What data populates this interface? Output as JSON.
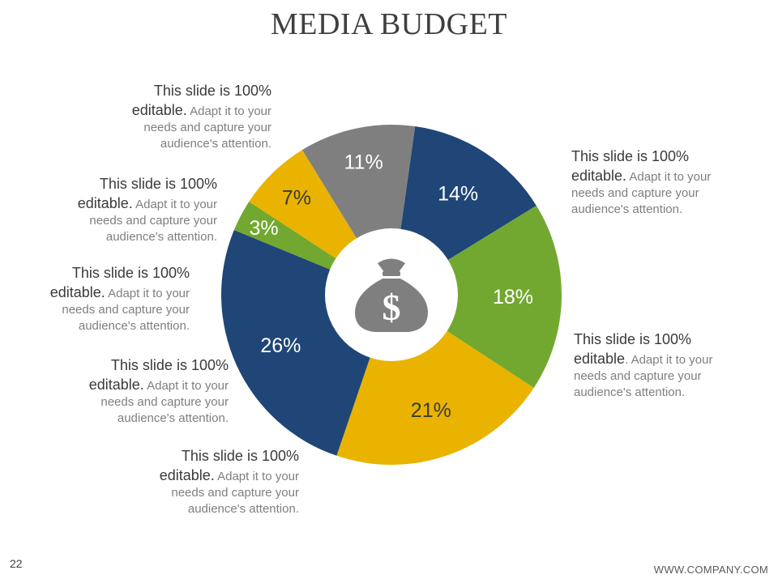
{
  "title": "MEDIA BUDGET",
  "page_number": "22",
  "footer_url": "WWW.COMPANY.COM",
  "notes": [
    {
      "head": "This slide is 100% editable.",
      "rest": " Adapt it to your needs and capture your audience's attention."
    },
    {
      "head": "This slide is 100% editable.",
      "rest": " Adapt it to your needs and capture your audience's attention."
    },
    {
      "head": "This slide is 100% editable.",
      "rest": " Adapt it to your needs and capture your audience's attention."
    },
    {
      "head": "This slide is 100% editable.",
      "rest": " Adapt it to your needs and capture your audience's attention."
    },
    {
      "head": "This slide is 100% editable.",
      "rest": " Adapt it to your needs and capture your audience's attention."
    },
    {
      "head": "This slide is 100% editable",
      "rest": ". Adapt it to your needs and capture your audience's attention."
    },
    {
      "head": "This slide is 100% editable.",
      "rest": " Adapt it to your needs and capture your audience's attention."
    }
  ],
  "center_icon": "money-bag-dollar-icon",
  "chart_data": {
    "type": "pie",
    "donut": true,
    "title": "",
    "slices": [
      {
        "label": "14%",
        "value": 14,
        "color": "#1f4677",
        "text_color": "#ffffff"
      },
      {
        "label": "18%",
        "value": 18,
        "color": "#72a830",
        "text_color": "#ffffff"
      },
      {
        "label": "21%",
        "value": 21,
        "color": "#e9b300",
        "text_color": "#3a3a3a"
      },
      {
        "label": "26%",
        "value": 26,
        "color": "#1f4677",
        "text_color": "#ffffff"
      },
      {
        "label": "3%",
        "value": 3,
        "color": "#72a830",
        "text_color": "#ffffff"
      },
      {
        "label": "7%",
        "value": 7,
        "color": "#e9b300",
        "text_color": "#3a3a3a"
      },
      {
        "label": "11%",
        "value": 11,
        "color": "#7f7f7f",
        "text_color": "#ffffff"
      }
    ]
  }
}
